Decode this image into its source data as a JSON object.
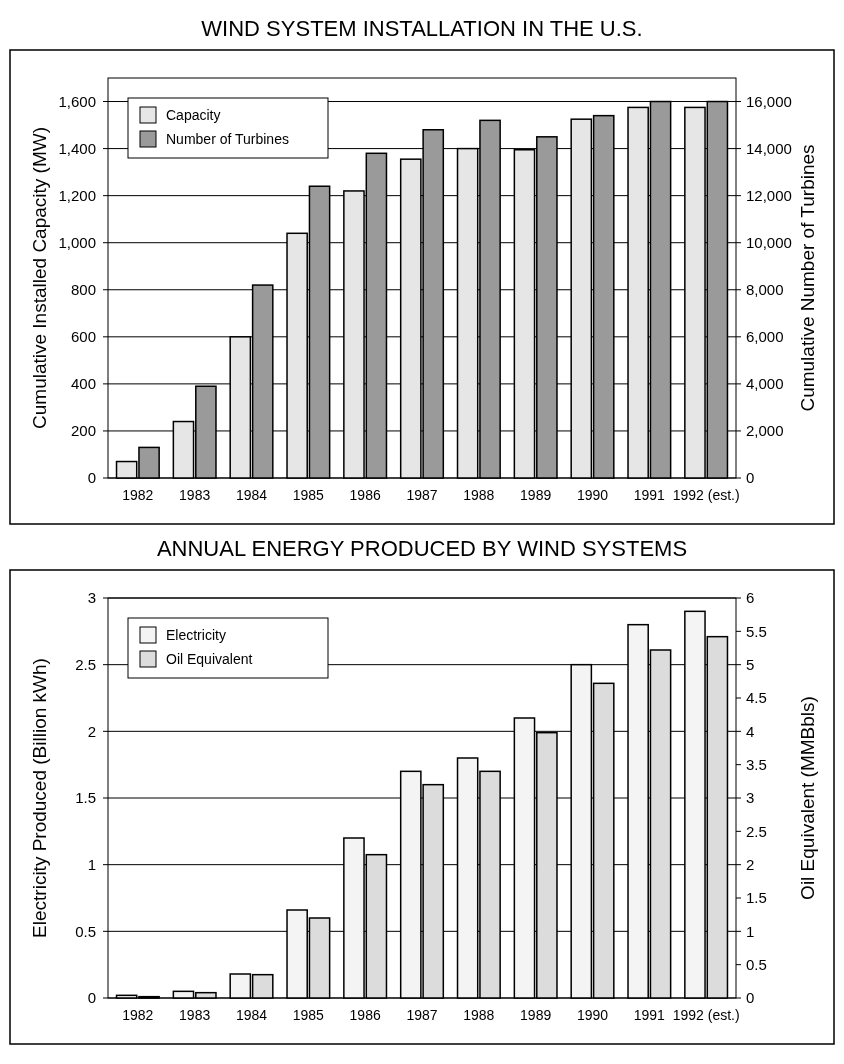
{
  "chart_data": [
    {
      "type": "bar",
      "title": "WIND SYSTEM INSTALLATION IN THE U.S.",
      "ylabel": "Cumulative Installed Capacity  (MW)",
      "y2label": "Cumulative Number of  Turbines",
      "categories": [
        "1982",
        "1983",
        "1984",
        "1985",
        "1986",
        "1987",
        "1988",
        "1989",
        "1990",
        "1991",
        "1992 (est.)"
      ],
      "series": [
        {
          "name": "Capacity",
          "color": "#e6e6e6",
          "values": [
            70,
            240,
            600,
            1040,
            1220,
            1355,
            1400,
            1395,
            1525,
            1575,
            1575
          ]
        },
        {
          "name": "Number of Turbines",
          "color": "#9a9a9a",
          "axis": "y2",
          "values": [
            1300,
            3900,
            8200,
            12400,
            13800,
            14800,
            15200,
            14500,
            15400,
            16000,
            16000
          ]
        }
      ],
      "ylim": [
        0,
        1700
      ],
      "yticks": [
        0,
        200,
        400,
        600,
        800,
        {
          "value": 1000,
          "label": "1,000"
        },
        {
          "value": 1200,
          "label": "1,200"
        },
        {
          "value": 1400,
          "label": "1,400"
        },
        {
          "value": 1600,
          "label": "1,600"
        }
      ],
      "y2lim": [
        0,
        17000
      ],
      "y2ticks": [
        0,
        {
          "value": 2000,
          "label": "2,000"
        },
        {
          "value": 4000,
          "label": "4,000"
        },
        {
          "value": 6000,
          "label": "6,000"
        },
        {
          "value": 8000,
          "label": "8,000"
        },
        {
          "value": 10000,
          "label": "10,000"
        },
        {
          "value": 12000,
          "label": "12,000"
        },
        {
          "value": 14000,
          "label": "14,000"
        },
        {
          "value": 16000,
          "label": "16,000"
        }
      ],
      "grid": "y",
      "legend": "top left"
    },
    {
      "type": "bar",
      "title": "ANNUAL ENERGY PRODUCED BY WIND SYSTEMS",
      "ylabel": "Electricity Produced (Billion  kWh)",
      "y2label": "Oil Equivalent   (MMBbls)",
      "categories": [
        "1982",
        "1983",
        "1984",
        "1985",
        "1986",
        "1987",
        "1988",
        "1989",
        "1990",
        "1991",
        "1992 (est.)"
      ],
      "series": [
        {
          "name": "Electricity",
          "color": "#f4f4f4",
          "values": [
            0.02,
            0.05,
            0.18,
            0.66,
            1.2,
            1.7,
            1.8,
            2.1,
            2.5,
            2.8,
            2.9
          ]
        },
        {
          "name": "Oil Equivalent",
          "color": "#dcdcdc",
          "axis": "y2",
          "values": [
            0.02,
            0.08,
            0.35,
            1.2,
            2.15,
            3.2,
            3.4,
            3.98,
            4.72,
            5.22,
            5.42
          ]
        }
      ],
      "ylim": [
        0,
        3
      ],
      "yticks": [
        0,
        0.5,
        1,
        1.5,
        2,
        2.5,
        3
      ],
      "y2lim": [
        0,
        6
      ],
      "y2ticks": [
        0,
        0.5,
        1,
        1.5,
        2,
        2.5,
        3,
        3.5,
        4,
        4.5,
        5,
        5.5,
        6
      ],
      "grid": "y",
      "legend": "top left"
    }
  ]
}
